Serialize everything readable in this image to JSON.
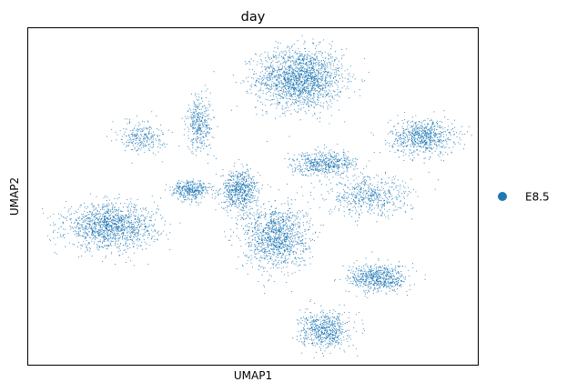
{
  "chart_data": {
    "type": "scatter",
    "embedding": "UMAP",
    "title": "day",
    "xlabel": "UMAP1",
    "ylabel": "UMAP2",
    "show_ticks": false,
    "grid": false,
    "legend": {
      "placement": "right-outside",
      "entries": [
        {
          "label": "E8.5",
          "color": "#1f77b4"
        }
      ]
    },
    "xlim": [
      0,
      100
    ],
    "ylim": [
      0,
      100
    ],
    "series": [
      {
        "name": "E8.5",
        "color": "#1f77b4",
        "point_count_approx": 60000,
        "clusters": [
          {
            "name": "top-central-mass",
            "cx": 60.5,
            "cy": 85.5,
            "sx": 8.0,
            "sy": 7.5,
            "weight": 0.2
          },
          {
            "name": "top-right-blob",
            "cx": 88.0,
            "cy": 68.0,
            "sx": 6.0,
            "sy": 4.5,
            "weight": 0.08
          },
          {
            "name": "left-lobe",
            "cx": 18.0,
            "cy": 41.0,
            "sx": 8.5,
            "sy": 5.5,
            "weight": 0.15
          },
          {
            "name": "center-left-hub",
            "cx": 47.0,
            "cy": 52.0,
            "sx": 3.5,
            "sy": 5.0,
            "weight": 0.07
          },
          {
            "name": "center-lower-mass",
            "cx": 55.0,
            "cy": 38.0,
            "sx": 6.0,
            "sy": 8.0,
            "weight": 0.13
          },
          {
            "name": "bottom-right-blob",
            "cx": 78.0,
            "cy": 25.5,
            "sx": 5.5,
            "sy": 3.5,
            "weight": 0.07
          },
          {
            "name": "bottom-blob",
            "cx": 66.0,
            "cy": 10.0,
            "sx": 4.5,
            "sy": 4.5,
            "weight": 0.07
          },
          {
            "name": "upper-left-strand",
            "cx": 25.0,
            "cy": 68.0,
            "sx": 4.0,
            "sy": 4.0,
            "weight": 0.03
          },
          {
            "name": "upper-mid-strand",
            "cx": 38.0,
            "cy": 72.0,
            "sx": 2.5,
            "sy": 7.0,
            "weight": 0.04
          },
          {
            "name": "mid-left-hook",
            "cx": 36.0,
            "cy": 52.0,
            "sx": 3.5,
            "sy": 2.5,
            "weight": 0.04
          },
          {
            "name": "right-streaks",
            "cx": 76.0,
            "cy": 50.0,
            "sx": 8.0,
            "sy": 5.0,
            "weight": 0.06
          },
          {
            "name": "center-band",
            "cx": 66.0,
            "cy": 60.0,
            "sx": 6.0,
            "sy": 3.0,
            "weight": 0.06
          }
        ]
      }
    ]
  }
}
